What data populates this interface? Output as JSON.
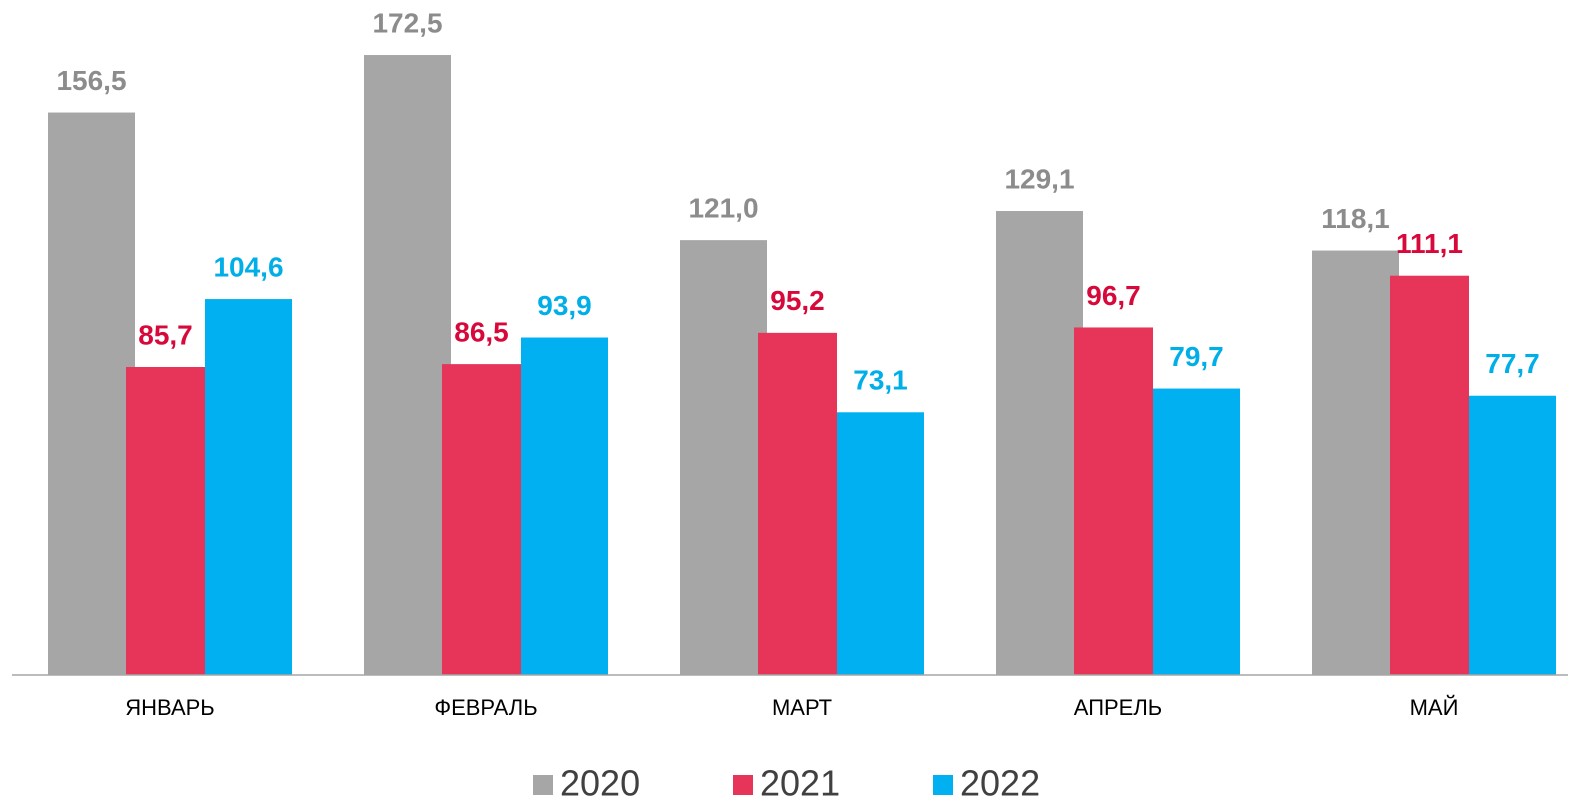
{
  "chart_data": {
    "type": "bar",
    "categories": [
      "ЯНВАРЬ",
      "ФЕВРАЛЬ",
      "МАРТ",
      "АПРЕЛЬ",
      "МАЙ"
    ],
    "series": [
      {
        "name": "2020",
        "color": "#a6a6a6",
        "label_color": "#8c8c8c",
        "values": [
          156.5,
          172.5,
          121.0,
          129.1,
          118.1
        ],
        "value_labels": [
          "156,5",
          "172,5",
          "121,0",
          "129,1",
          "118,1"
        ]
      },
      {
        "name": "2021",
        "color": "#e63558",
        "label_color": "#d7083a",
        "values": [
          85.7,
          86.5,
          95.2,
          96.7,
          111.1
        ],
        "value_labels": [
          "85,7",
          "86,5",
          "95,2",
          "96,7",
          "111,1"
        ]
      },
      {
        "name": "2022",
        "color": "#00b0f0",
        "label_color": "#00aee8",
        "values": [
          104.6,
          93.9,
          73.1,
          79.7,
          77.7
        ],
        "value_labels": [
          "104,6",
          "93,9",
          "73,1",
          "79,7",
          "77,7"
        ]
      }
    ]
  }
}
